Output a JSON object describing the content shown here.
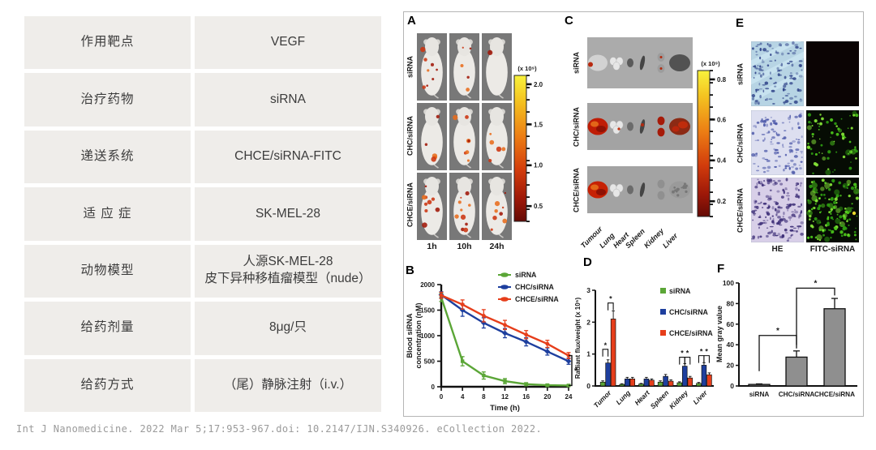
{
  "table": {
    "rows": [
      {
        "label": "作用靶点",
        "value": "VEGF"
      },
      {
        "label": "治疗药物",
        "value": "siRNA"
      },
      {
        "label": "递送系统",
        "value": "CHCE/siRNA-FITC"
      },
      {
        "label": "适 应 症",
        "value": "SK-MEL-28"
      },
      {
        "label": "动物模型",
        "value": "人源SK-MEL-28 皮下异种移植瘤模型（nude）",
        "value_lines": [
          "人源SK-MEL-28",
          "皮下异种移植瘤模型（nude）"
        ]
      },
      {
        "label": "给药剂量",
        "value": "8μg/只"
      },
      {
        "label": "给药方式",
        "value": "（尾）静脉注射（i.v.）"
      }
    ]
  },
  "citation": "Int J Nanomedicine. 2022 Mar 5;17:953-967.doi: 10.2147/IJN.S340926. eCollection 2022.",
  "figure": {
    "groups": [
      "siRNA",
      "CHC/siRNA",
      "CHCE/siRNA"
    ],
    "colors": {
      "siRNA": "#5ba637",
      "CHC/siRNA": "#1e3f9e",
      "CHCE/siRNA": "#e63e1b"
    },
    "panels": {
      "A": {
        "letter": "A",
        "times": [
          "1h",
          "10h",
          "24h"
        ],
        "colorbar": {
          "label": "(x 10⁹)",
          "ticks": [
            "2.0",
            "1.5",
            "1.0",
            "0.5"
          ]
        }
      },
      "B": {
        "letter": "B"
      },
      "C": {
        "letter": "C",
        "organs": [
          "Tumour",
          "Lung",
          "Heart",
          "Spleen",
          "Kidney",
          "Liver"
        ],
        "colorbar": {
          "label": "(x 10⁹)",
          "ticks": [
            "0.8",
            "0.6",
            "0.4",
            "0.2"
          ]
        }
      },
      "D": {
        "letter": "D"
      },
      "E": {
        "letter": "E",
        "columns": [
          "HE",
          "FITC-siRNA"
        ]
      },
      "F": {
        "letter": "F"
      }
    }
  },
  "chart_data": [
    {
      "id": "B",
      "type": "line",
      "xlabel": "Time (h)",
      "ylabel": "Blood siRNA concentration (nM)",
      "ylabel_lines": [
        "Blood siRNA",
        "concentration (nM)"
      ],
      "x": [
        0,
        4,
        8,
        12,
        16,
        20,
        24
      ],
      "xticks": [
        0,
        4,
        8,
        12,
        16,
        20,
        24
      ],
      "yticks": [
        0,
        500,
        1000,
        1500,
        2000
      ],
      "xlim": [
        0,
        24
      ],
      "ylim": [
        0,
        2000
      ],
      "series": [
        {
          "name": "siRNA",
          "color": "#5ba637",
          "values": [
            1750,
            500,
            220,
            110,
            50,
            30,
            25
          ],
          "errors": [
            80,
            90,
            70,
            50,
            30,
            25,
            20
          ]
        },
        {
          "name": "CHC/siRNA",
          "color": "#1e3f9e",
          "values": [
            1800,
            1500,
            1250,
            1050,
            880,
            690,
            500
          ],
          "errors": [
            60,
            120,
            100,
            90,
            80,
            70,
            60
          ]
        },
        {
          "name": "CHCE/siRNA",
          "color": "#e63e1b",
          "values": [
            1790,
            1610,
            1390,
            1210,
            1020,
            840,
            610
          ],
          "errors": [
            60,
            90,
            120,
            90,
            80,
            70,
            60
          ]
        }
      ],
      "legend_position": "top-right",
      "significance": {
        "label": "*",
        "between": [
          "CHCE/siRNA",
          "siRNA"
        ],
        "at_x": 24
      }
    },
    {
      "id": "D",
      "type": "bar",
      "ylabel": "Radiant flux/weight (x 10⁵)",
      "categories": [
        "Tumor",
        "Lung",
        "Heart",
        "Spleen",
        "Kidney",
        "Liver"
      ],
      "yticks": [
        0,
        1,
        2,
        3
      ],
      "ylim": [
        0,
        3
      ],
      "series": [
        {
          "name": "siRNA",
          "color": "#5ba637",
          "values": [
            0.12,
            0.05,
            0.06,
            0.12,
            0.1,
            0.08
          ],
          "errors": [
            0.04,
            0.02,
            0.02,
            0.04,
            0.03,
            0.03
          ]
        },
        {
          "name": "CHC/siRNA",
          "color": "#1e3f9e",
          "values": [
            0.72,
            0.22,
            0.22,
            0.3,
            0.62,
            0.65
          ],
          "errors": [
            0.1,
            0.05,
            0.05,
            0.06,
            0.08,
            0.08
          ]
        },
        {
          "name": "CHCE/siRNA",
          "color": "#e63e1b",
          "values": [
            2.1,
            0.22,
            0.18,
            0.15,
            0.25,
            0.35
          ],
          "errors": [
            0.25,
            0.05,
            0.04,
            0.04,
            0.05,
            0.06
          ]
        }
      ],
      "legend_position": "top-right",
      "significance": [
        {
          "category_index": 0,
          "between": [
            0,
            1
          ],
          "y": 1.15,
          "label": "*"
        },
        {
          "category_index": 0,
          "between": [
            1,
            2
          ],
          "y": 2.6,
          "label": "*"
        },
        {
          "category_index": 4,
          "between": [
            0,
            1
          ],
          "y": 0.9,
          "label": "*"
        },
        {
          "category_index": 4,
          "between": [
            1,
            2
          ],
          "y": 0.9,
          "label": "*"
        },
        {
          "category_index": 5,
          "between": [
            0,
            1
          ],
          "y": 0.95,
          "label": "*"
        },
        {
          "category_index": 5,
          "between": [
            1,
            2
          ],
          "y": 0.95,
          "label": "*"
        }
      ]
    },
    {
      "id": "F",
      "type": "bar",
      "ylabel": "Mean gray value",
      "categories": [
        "siRNA",
        "CHC/siRNA",
        "CHCE/siRNA"
      ],
      "yticks": [
        0,
        20,
        40,
        60,
        80,
        100
      ],
      "ylim": [
        0,
        100
      ],
      "bar_color": "#8f8f8f",
      "values": [
        1.5,
        28,
        75
      ],
      "errors": [
        0.5,
        6,
        10
      ],
      "significance": [
        {
          "between": [
            0,
            1
          ],
          "y": 49,
          "label": "*"
        },
        {
          "between": [
            1,
            2
          ],
          "y": 95,
          "label": "*"
        }
      ]
    }
  ]
}
